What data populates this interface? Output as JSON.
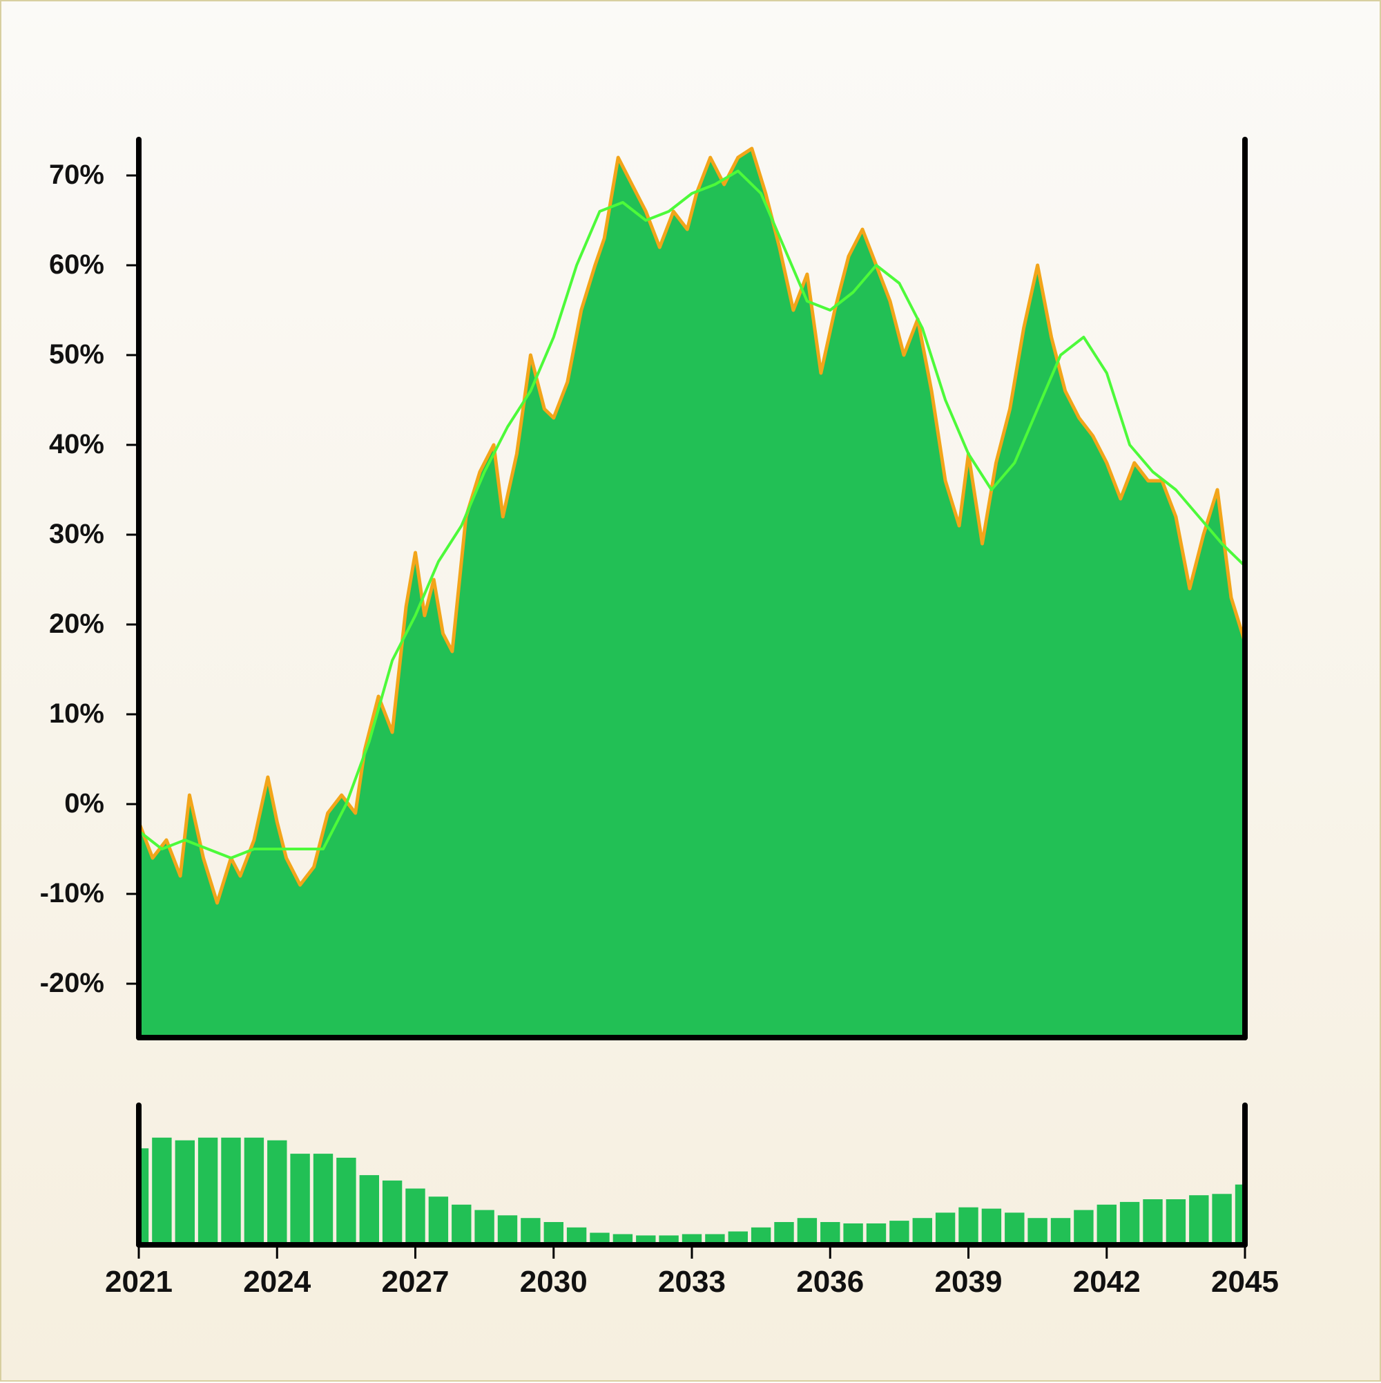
{
  "chart_data": [
    {
      "type": "area",
      "title": "",
      "xlabel": "",
      "ylabel": "",
      "ylim": [
        -26,
        74
      ],
      "xlim": [
        2021,
        2045
      ],
      "y_ticks": [
        "-20%",
        "-10%",
        "0%",
        "10%",
        "20%",
        "30%",
        "40%",
        "50%",
        "60%",
        "70%"
      ],
      "y_tick_values": [
        -20,
        -10,
        0,
        10,
        20,
        30,
        40,
        50,
        60,
        70
      ],
      "grid": false,
      "colors": {
        "fill": "#22c055",
        "edge": "#f2a51a",
        "moving_average": "#4dfa3a",
        "axis": "#000000"
      },
      "series": [
        {
          "style": "area",
          "x": [
            2021.0,
            2021.3,
            2021.6,
            2021.9,
            2022.1,
            2022.4,
            2022.7,
            2023.0,
            2023.2,
            2023.5,
            2023.8,
            2024.0,
            2024.2,
            2024.5,
            2024.8,
            2025.1,
            2025.4,
            2025.7,
            2025.9,
            2026.2,
            2026.5,
            2026.8,
            2027.0,
            2027.2,
            2027.4,
            2027.6,
            2027.8,
            2028.1,
            2028.4,
            2028.7,
            2028.9,
            2029.2,
            2029.5,
            2029.8,
            2030.0,
            2030.3,
            2030.6,
            2030.9,
            2031.1,
            2031.4,
            2031.7,
            2032.0,
            2032.3,
            2032.6,
            2032.9,
            2033.1,
            2033.4,
            2033.7,
            2034.0,
            2034.3,
            2034.6,
            2034.9,
            2035.2,
            2035.5,
            2035.8,
            2036.1,
            2036.4,
            2036.7,
            2037.0,
            2037.3,
            2037.6,
            2037.9,
            2038.2,
            2038.5,
            2038.8,
            2039.0,
            2039.3,
            2039.6,
            2039.9,
            2040.2,
            2040.5,
            2040.8,
            2041.1,
            2041.4,
            2041.7,
            2042.0,
            2042.3,
            2042.6,
            2042.9,
            2043.2,
            2043.5,
            2043.8,
            2044.1,
            2044.4,
            2044.7,
            2045.0
          ],
          "y": [
            -2,
            -6,
            -4,
            -8,
            1,
            -6,
            -11,
            -6,
            -8,
            -4,
            3,
            -2,
            -6,
            -9,
            -7,
            -1,
            1,
            -1,
            6,
            12,
            8,
            22,
            28,
            21,
            25,
            19,
            17,
            32,
            37,
            40,
            32,
            39,
            50,
            44,
            43,
            47,
            55,
            60,
            63,
            72,
            69,
            66,
            62,
            66,
            64,
            68,
            72,
            69,
            72,
            73,
            68,
            62,
            55,
            59,
            48,
            55,
            61,
            64,
            60,
            56,
            50,
            54,
            46,
            36,
            31,
            39,
            29,
            38,
            44,
            53,
            60,
            52,
            46,
            43,
            41,
            38,
            34,
            38,
            36,
            36,
            32,
            24,
            30,
            35,
            23,
            18
          ]
        },
        {
          "style": "line",
          "x": [
            2021.0,
            2021.5,
            2022.0,
            2022.5,
            2023.0,
            2023.5,
            2024.0,
            2024.5,
            2025.0,
            2025.5,
            2026.0,
            2026.5,
            2027.0,
            2027.5,
            2028.0,
            2028.5,
            2029.0,
            2029.5,
            2030.0,
            2030.5,
            2031.0,
            2031.5,
            2032.0,
            2032.5,
            2033.0,
            2033.5,
            2034.0,
            2034.5,
            2035.0,
            2035.5,
            2036.0,
            2036.5,
            2037.0,
            2037.5,
            2038.0,
            2038.5,
            2039.0,
            2039.5,
            2040.0,
            2040.5,
            2041.0,
            2041.5,
            2042.0,
            2042.5,
            2043.0,
            2043.5,
            2044.0,
            2044.5,
            2045.0
          ],
          "y": [
            -3,
            -5,
            -4,
            -5,
            -6,
            -5,
            -5,
            -5,
            -5,
            0,
            7,
            16,
            21,
            27,
            31,
            37,
            42,
            46,
            52,
            60,
            66,
            67,
            65,
            66,
            68,
            69,
            70.5,
            68,
            62,
            56,
            55,
            57,
            60,
            58,
            53,
            45,
            39,
            35,
            38,
            44,
            50,
            52,
            48,
            40,
            37,
            35,
            32,
            29,
            26.5
          ]
        }
      ]
    },
    {
      "type": "bar",
      "title": "",
      "xlabel": "",
      "ylabel": "",
      "x_ticks": [
        "2021",
        "2024",
        "2027",
        "2030",
        "2033",
        "2036",
        "2039",
        "2042",
        "2045"
      ],
      "x_tick_values": [
        2021,
        2024,
        2027,
        2030,
        2033,
        2036,
        2039,
        2042,
        2045
      ],
      "xlim": [
        2021,
        2045
      ],
      "ylim": [
        0,
        1
      ],
      "colors": {
        "bar": "#22c055"
      },
      "x": [
        2021.0,
        2021.5,
        2022.0,
        2022.5,
        2023.0,
        2023.5,
        2024.0,
        2024.5,
        2025.0,
        2025.5,
        2026.0,
        2026.5,
        2027.0,
        2027.5,
        2028.0,
        2028.5,
        2029.0,
        2029.5,
        2030.0,
        2030.5,
        2031.0,
        2031.5,
        2032.0,
        2032.5,
        2033.0,
        2033.5,
        2034.0,
        2034.5,
        2035.0,
        2035.5,
        2036.0,
        2036.5,
        2037.0,
        2037.5,
        2038.0,
        2038.5,
        2039.0,
        2039.5,
        2040.0,
        2040.5,
        2041.0,
        2041.5,
        2042.0,
        2042.5,
        2043.0,
        2043.5,
        2044.0,
        2044.5,
        2045.0
      ],
      "values": [
        0.72,
        0.8,
        0.78,
        0.8,
        0.8,
        0.8,
        0.78,
        0.68,
        0.68,
        0.65,
        0.52,
        0.48,
        0.42,
        0.36,
        0.3,
        0.26,
        0.22,
        0.2,
        0.17,
        0.13,
        0.09,
        0.08,
        0.07,
        0.07,
        0.08,
        0.08,
        0.1,
        0.13,
        0.17,
        0.2,
        0.17,
        0.16,
        0.16,
        0.18,
        0.2,
        0.24,
        0.28,
        0.27,
        0.24,
        0.2,
        0.2,
        0.26,
        0.3,
        0.32,
        0.34,
        0.34,
        0.37,
        0.38,
        0.45
      ]
    }
  ]
}
